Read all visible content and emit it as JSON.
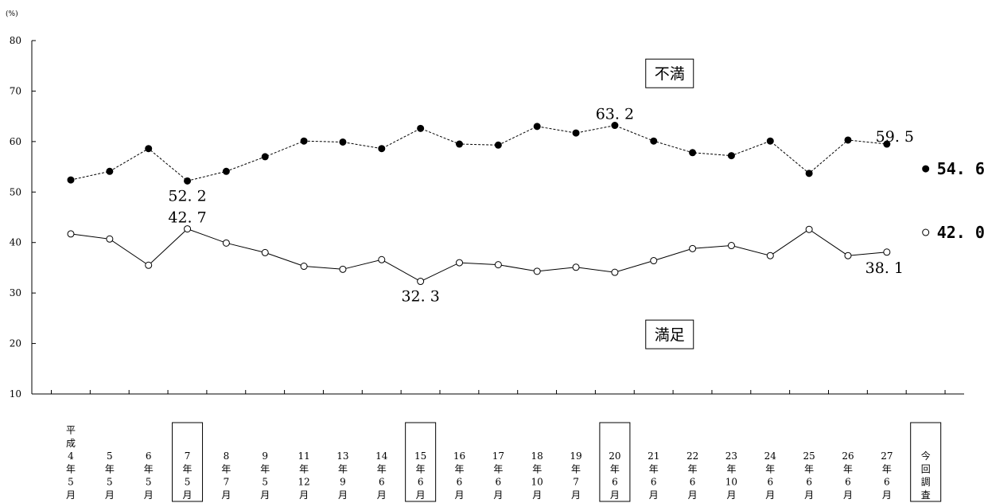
{
  "chart_data": {
    "type": "line",
    "ylabel": "(%)",
    "ylim": [
      10,
      80
    ],
    "yticks": [
      10,
      20,
      30,
      40,
      50,
      60,
      70,
      80
    ],
    "categories": [
      "平成4年5月",
      "5年5月",
      "6年5月",
      "7年5月",
      "8年7月",
      "9年5月",
      "11年12月",
      "13年9月",
      "14年6月",
      "15年6月",
      "16年6月",
      "17年6月",
      "18年10月",
      "19年7月",
      "20年6月",
      "21年6月",
      "22年6月",
      "23年10月",
      "24年6月",
      "25年6月",
      "26年6月",
      "27年6月",
      "今回調査"
    ],
    "category_lines": [
      [
        "平",
        "成",
        "4",
        "年",
        "5",
        "月"
      ],
      [
        "5",
        "年",
        "5",
        "月"
      ],
      [
        "6",
        "年",
        "5",
        "月"
      ],
      [
        "7",
        "年",
        "5",
        "月"
      ],
      [
        "8",
        "年",
        "7",
        "月"
      ],
      [
        "9",
        "年",
        "5",
        "月"
      ],
      [
        "11",
        "年",
        "12",
        "月"
      ],
      [
        "13",
        "年",
        "9",
        "月"
      ],
      [
        "14",
        "年",
        "6",
        "月"
      ],
      [
        "15",
        "年",
        "6",
        "月"
      ],
      [
        "16",
        "年",
        "6",
        "月"
      ],
      [
        "17",
        "年",
        "6",
        "月"
      ],
      [
        "18",
        "年",
        "10",
        "月"
      ],
      [
        "19",
        "年",
        "7",
        "月"
      ],
      [
        "20",
        "年",
        "6",
        "月"
      ],
      [
        "21",
        "年",
        "6",
        "月"
      ],
      [
        "22",
        "年",
        "6",
        "月"
      ],
      [
        "23",
        "年",
        "10",
        "月"
      ],
      [
        "24",
        "年",
        "6",
        "月"
      ],
      [
        "25",
        "年",
        "6",
        "月"
      ],
      [
        "26",
        "年",
        "6",
        "月"
      ],
      [
        "27",
        "年",
        "6",
        "月"
      ],
      [
        "今",
        "回",
        "調",
        "査"
      ]
    ],
    "boxed_categories": [
      3,
      9,
      14,
      22
    ],
    "series": [
      {
        "name": "不満",
        "style": "dashed",
        "marker": "filled",
        "color": "#000000",
        "values": [
          52.4,
          54.1,
          58.6,
          52.2,
          54.1,
          57.0,
          60.1,
          59.9,
          58.6,
          62.6,
          59.5,
          59.3,
          63.0,
          61.7,
          63.2,
          60.1,
          57.8,
          57.2,
          60.1,
          53.7,
          60.3,
          59.5,
          54.6
        ],
        "connect_until": 21,
        "labels": [
          {
            "index": 3,
            "text": "52. 2",
            "pos": "below"
          },
          {
            "index": 14,
            "text": "63. 2",
            "pos": "above"
          },
          {
            "index": 21,
            "text": "59. 5",
            "pos": "above-right"
          },
          {
            "index": 22,
            "text": "54. 6",
            "pos": "right",
            "current": true
          }
        ]
      },
      {
        "name": "満足",
        "style": "solid",
        "marker": "hollow",
        "color": "#000000",
        "values": [
          41.7,
          40.7,
          35.5,
          42.7,
          39.9,
          38.0,
          35.3,
          34.7,
          36.6,
          32.3,
          36.0,
          35.6,
          34.3,
          35.1,
          34.1,
          36.4,
          38.8,
          39.4,
          37.4,
          42.6,
          37.4,
          38.1,
          42.0
        ],
        "connect_until": 21,
        "labels": [
          {
            "index": 3,
            "text": "42. 7",
            "pos": "above"
          },
          {
            "index": 9,
            "text": "32. 3",
            "pos": "below"
          },
          {
            "index": 21,
            "text": "38. 1",
            "pos": "below-left"
          },
          {
            "index": 22,
            "text": "42. 0",
            "pos": "right",
            "current": true
          }
        ]
      }
    ],
    "series_boxes": [
      {
        "text": "不満",
        "near_value": 73.5,
        "near_index": 15
      },
      {
        "text": "満足",
        "near_value": 21.8,
        "near_index": 15
      }
    ],
    "grid": false,
    "legend": "none"
  }
}
